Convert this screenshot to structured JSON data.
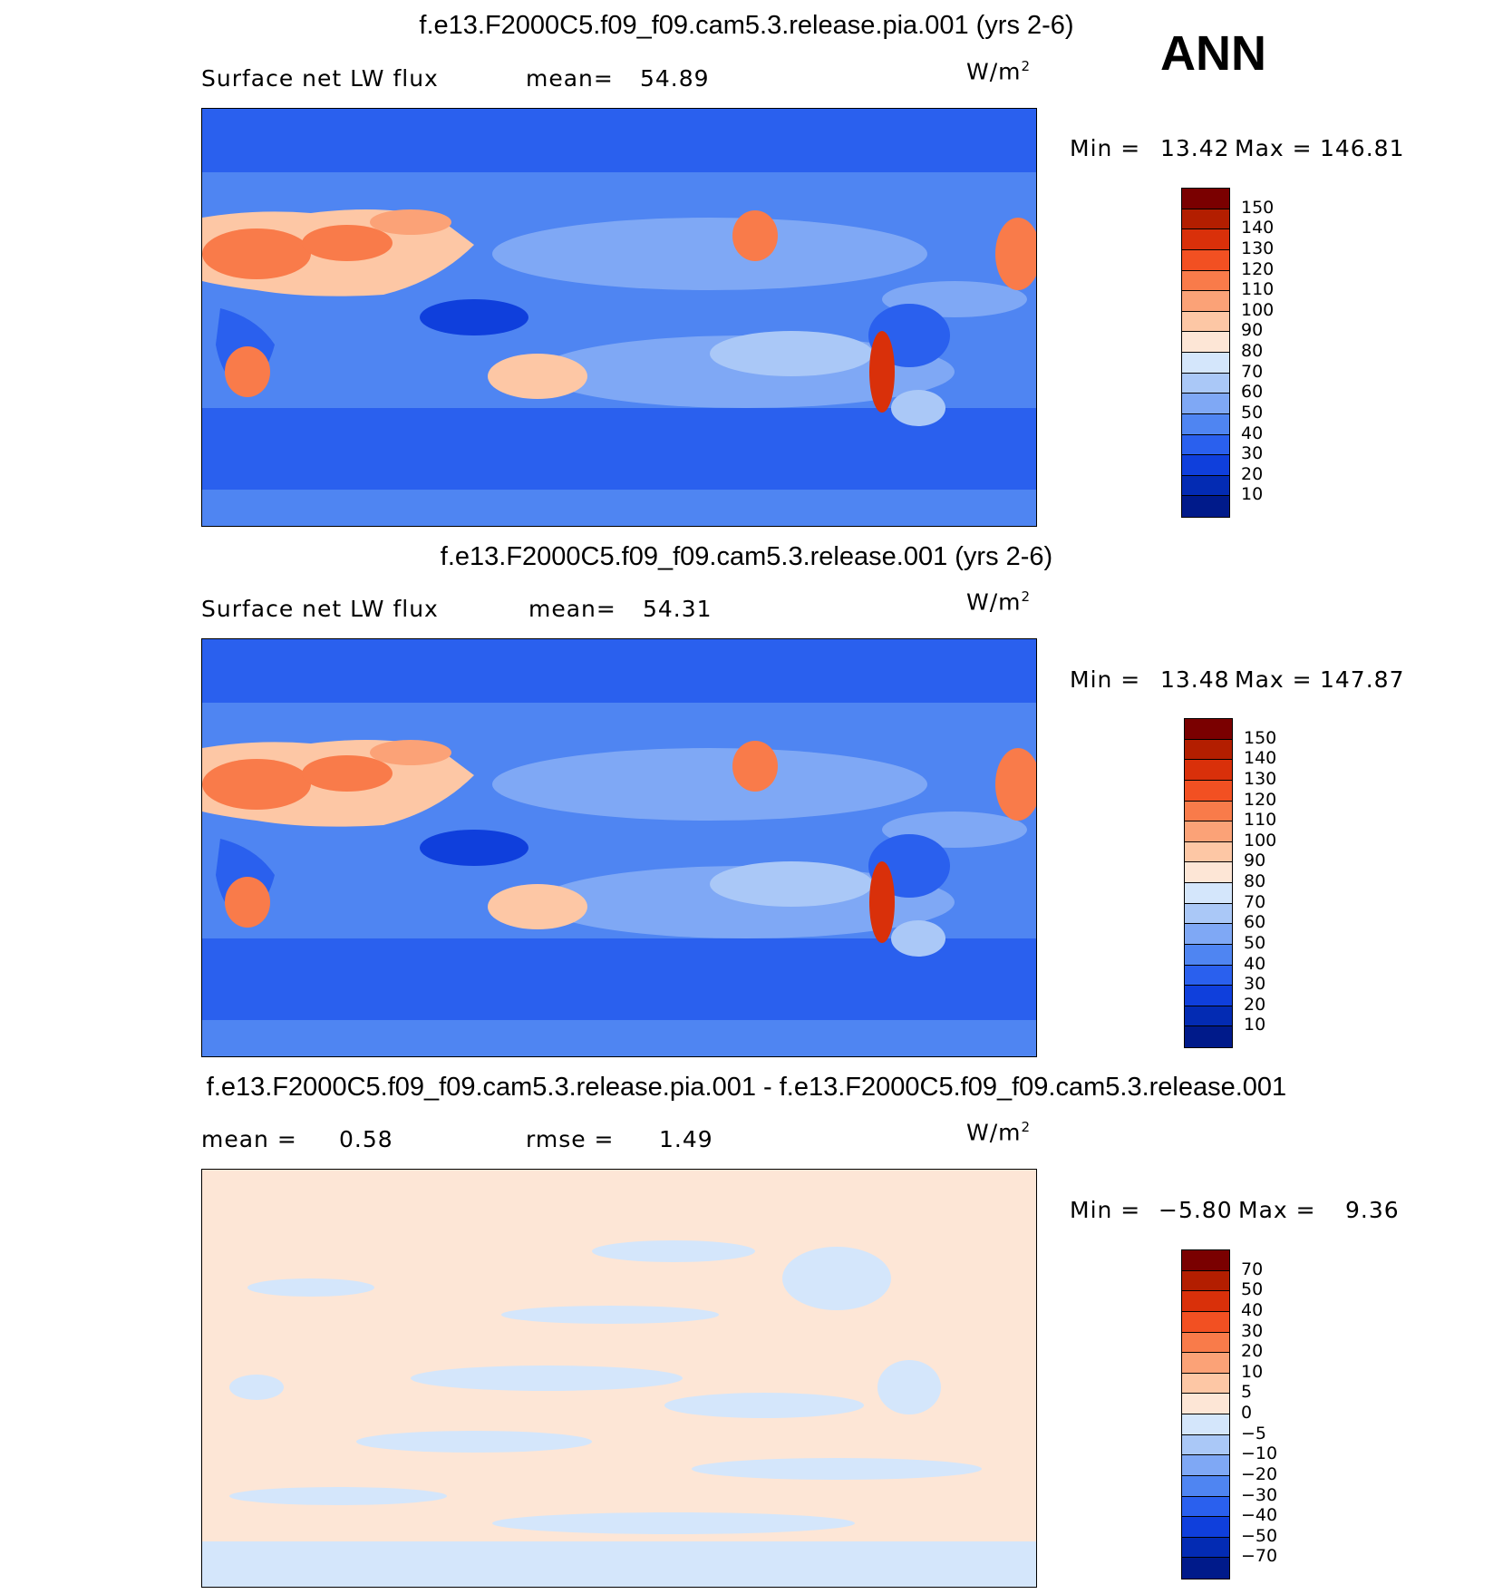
{
  "season": "ANN",
  "panels": [
    {
      "title": "f.e13.F2000C5.f09_f09.cam5.3.release.pia.001 (yrs 2-6)",
      "left_label": "Surface net LW flux",
      "stat1_label": "mean=",
      "stat1_value": "54.89",
      "units": "W/m",
      "units_sup": "2",
      "min_label": "Min =",
      "min_value": "13.42",
      "max_label": "Max =",
      "max_value": "146.81",
      "colorbar_labels": [
        "150",
        "140",
        "130",
        "120",
        "110",
        "100",
        "90",
        "80",
        "70",
        "60",
        "50",
        "40",
        "30",
        "20",
        "10"
      ],
      "colorbar_colors": [
        "#7a0000",
        "#b31e00",
        "#d9300a",
        "#f25022",
        "#f97b4a",
        "#fba277",
        "#fdc7a5",
        "#fde6d6",
        "#d4e6fb",
        "#aac8f7",
        "#7fa8f5",
        "#4f85f2",
        "#2a60ee",
        "#0f3fdc",
        "#032bb3",
        "#001a8a"
      ]
    },
    {
      "title": "f.e13.F2000C5.f09_f09.cam5.3.release.001 (yrs 2-6)",
      "left_label": "Surface net LW flux",
      "stat1_label": "mean=",
      "stat1_value": "54.31",
      "units": "W/m",
      "units_sup": "2",
      "min_label": "Min =",
      "min_value": "13.48",
      "max_label": "Max =",
      "max_value": "147.87",
      "colorbar_labels": [
        "150",
        "140",
        "130",
        "120",
        "110",
        "100",
        "90",
        "80",
        "70",
        "60",
        "50",
        "40",
        "30",
        "20",
        "10"
      ],
      "colorbar_colors": [
        "#7a0000",
        "#b31e00",
        "#d9300a",
        "#f25022",
        "#f97b4a",
        "#fba277",
        "#fdc7a5",
        "#fde6d6",
        "#d4e6fb",
        "#aac8f7",
        "#7fa8f5",
        "#4f85f2",
        "#2a60ee",
        "#0f3fdc",
        "#032bb3",
        "#001a8a"
      ]
    },
    {
      "title": "f.e13.F2000C5.f09_f09.cam5.3.release.pia.001 - f.e13.F2000C5.f09_f09.cam5.3.release.001",
      "left_label": "mean =",
      "stat0_value": "0.58",
      "stat1_label": "rmse =",
      "stat1_value": "1.49",
      "units": "W/m",
      "units_sup": "2",
      "min_label": "Min =",
      "min_value": "−5.80",
      "max_label": "Max =",
      "max_value": "9.36",
      "colorbar_labels": [
        "70",
        "50",
        "40",
        "30",
        "20",
        "10",
        "5",
        "0",
        "−5",
        "−10",
        "−20",
        "−30",
        "−40",
        "−50",
        "−70"
      ],
      "colorbar_colors": [
        "#7a0000",
        "#b31e00",
        "#d9300a",
        "#f25022",
        "#f97b4a",
        "#fba277",
        "#fdc7a5",
        "#fde6d6",
        "#d4e6fb",
        "#aac8f7",
        "#7fa8f5",
        "#4f85f2",
        "#2a60ee",
        "#0f3fdc",
        "#032bb3",
        "#001a8a"
      ]
    }
  ]
}
